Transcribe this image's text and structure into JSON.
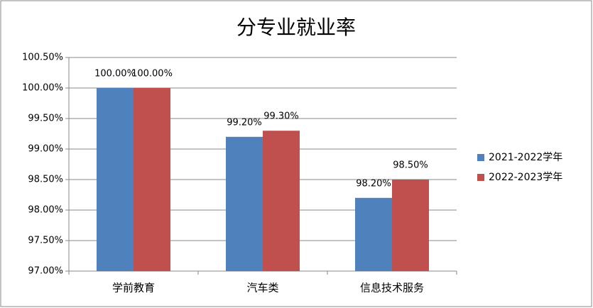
{
  "chart_data": {
    "type": "bar",
    "title": "分专业就业率",
    "categories": [
      "学前教育",
      "汽车类",
      "信息技术服务"
    ],
    "series": [
      {
        "name": "2021-2022学年",
        "color": "#4f81bd",
        "values": [
          100,
          99.2,
          98.2
        ],
        "value_labels": [
          "100.00%",
          "99.20%",
          "98.20%"
        ]
      },
      {
        "name": "2022-2023学年",
        "color": "#c0504d",
        "values": [
          100,
          99.3,
          98.5
        ],
        "value_labels": [
          "100.00%",
          "99.30%",
          "98.50%"
        ]
      }
    ],
    "ylim": [
      97,
      100.5
    ],
    "yticks": [
      {
        "value": 97,
        "label": "97.00%"
      },
      {
        "value": 97.5,
        "label": "97.50%"
      },
      {
        "value": 98,
        "label": "98.00%"
      },
      {
        "value": 98.5,
        "label": "98.50%"
      },
      {
        "value": 99,
        "label": "99.00%"
      },
      {
        "value": 99.5,
        "label": "99.50%"
      },
      {
        "value": 100,
        "label": "100.00%"
      },
      {
        "value": 100.5,
        "label": "100.50%"
      }
    ],
    "grid": true,
    "legend": "right"
  }
}
